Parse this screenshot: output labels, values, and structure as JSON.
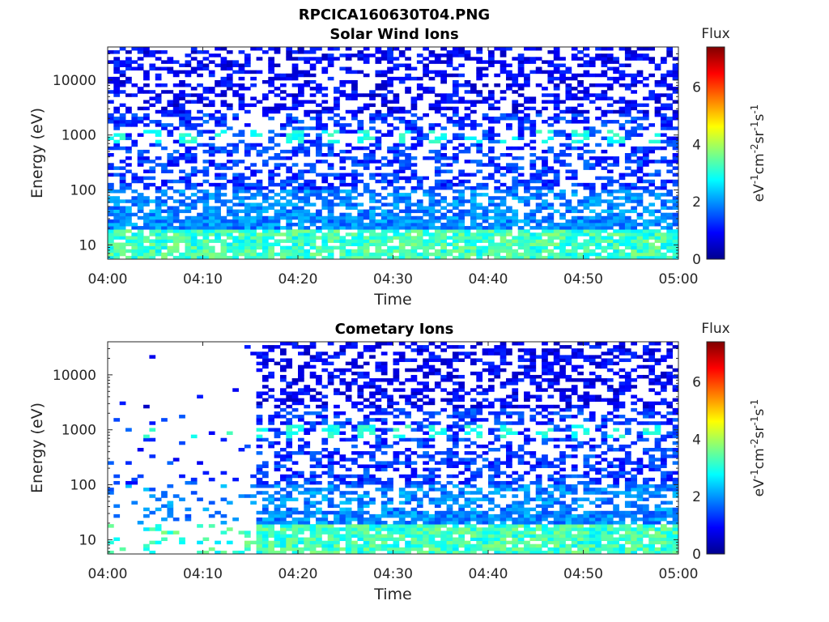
{
  "figure": {
    "title": "RPCICA160630T04.PNG"
  },
  "colormap": "jet",
  "chart_data": [
    {
      "type": "heatmap",
      "title": "Solar Wind Ions",
      "xlabel": "Time",
      "ylabel": "Energy (eV)",
      "x_tick_labels": [
        "04:00",
        "04:10",
        "04:20",
        "04:30",
        "04:40",
        "04:50",
        "05:00"
      ],
      "x_range_minutes": [
        0,
        60
      ],
      "y_scale": "log",
      "y_range": [
        5.5,
        40000
      ],
      "y_tick_values": [
        10,
        100,
        1000,
        10000
      ],
      "y_tick_labels": [
        "10",
        "100",
        "1000",
        "10000"
      ],
      "colorbar": {
        "title": "Flux",
        "label": "eV-1cm-2sr-1s-1",
        "label_base": [
          "eV",
          "cm",
          "sr",
          "s"
        ],
        "label_exp": [
          "-1",
          "-2",
          "-1",
          "-1"
        ],
        "range": [
          0,
          7.4
        ],
        "tick_values": [
          0,
          2,
          4,
          6
        ],
        "tick_labels": [
          "0",
          "2",
          "4",
          "6"
        ]
      },
      "density_profile": {
        "note_free": true,
        "low_energy_level": 2.6,
        "mid_band_energy": 900,
        "mid_band_level": 3.2,
        "high_energy_level": 0.4
      },
      "onset_minute": 0
    },
    {
      "type": "heatmap",
      "title": "Cometary Ions",
      "xlabel": "Time",
      "ylabel": "Energy (eV)",
      "x_tick_labels": [
        "04:00",
        "04:10",
        "04:20",
        "04:30",
        "04:40",
        "04:50",
        "05:00"
      ],
      "x_range_minutes": [
        0,
        60
      ],
      "y_scale": "log",
      "y_range": [
        5.5,
        40000
      ],
      "y_tick_values": [
        10,
        100,
        1000,
        10000
      ],
      "y_tick_labels": [
        "10",
        "100",
        "1000",
        "10000"
      ],
      "colorbar": {
        "title": "Flux",
        "label": "eV-1cm-2sr-1s-1",
        "label_base": [
          "eV",
          "cm",
          "sr",
          "s"
        ],
        "label_exp": [
          "-1",
          "-2",
          "-1",
          "-1"
        ],
        "range": [
          0,
          7.4
        ],
        "tick_values": [
          0,
          2,
          4,
          6
        ],
        "tick_labels": [
          "0",
          "2",
          "4",
          "6"
        ]
      },
      "density_profile": {
        "note_free": true,
        "low_energy_level": 2.6,
        "mid_band_energy": 900,
        "mid_band_level": 3.2,
        "high_energy_level": 0.4
      },
      "onset_minute": 15.3
    }
  ]
}
